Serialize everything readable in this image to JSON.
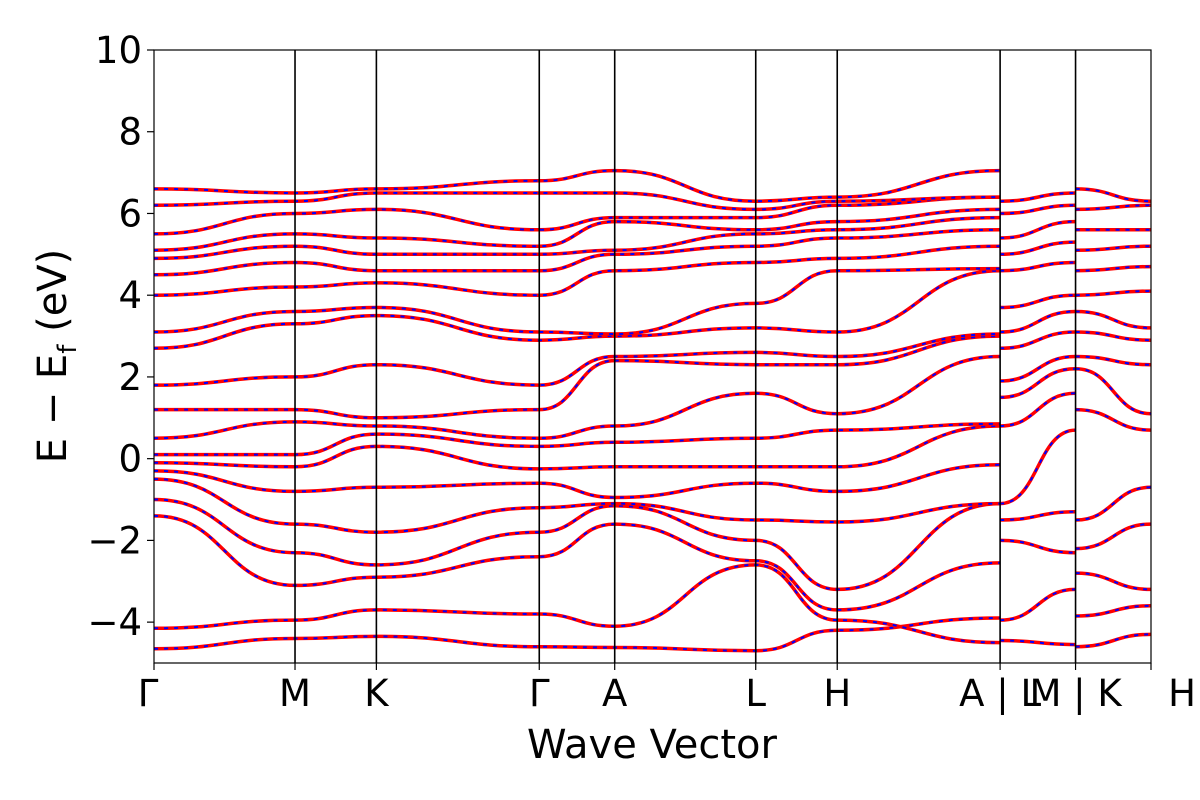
{
  "chart_data": {
    "type": "line",
    "title": "",
    "xlabel": "Wave Vector",
    "ylabel": {
      "main": "E − E",
      "sub": "f",
      "unit": " (eV)"
    },
    "ylim": [
      -5,
      10
    ],
    "yticks": [
      -4,
      -2,
      0,
      2,
      4,
      6,
      8,
      10
    ],
    "ytick_labels": [
      "−4",
      "−2",
      "0",
      "2",
      "4",
      "6",
      "8",
      "10"
    ],
    "grid": false,
    "legend": "none",
    "colors": {
      "solid": "#ff0000",
      "dashed": "#0000ff",
      "frame": "#000000"
    },
    "segments": [
      {
        "labels": [
          "Γ",
          "M",
          "K",
          "Γ",
          "A",
          "L",
          "H",
          "A"
        ],
        "x": [
          0,
          1.0,
          1.577,
          2.732,
          3.267,
          4.267,
          4.845,
          6.0
        ]
      },
      {
        "labels": [
          "L",
          "M"
        ],
        "x": [
          6.0,
          6.535
        ]
      },
      {
        "labels": [
          "K",
          "H"
        ],
        "x": [
          6.535,
          7.07
        ]
      }
    ],
    "xtick_labels": [
      "Γ",
      "M",
      "K",
      "Γ",
      "A",
      "L",
      "H",
      "A | L",
      "M | K",
      "H"
    ],
    "xtick_positions": [
      0,
      1.0,
      1.577,
      2.732,
      3.267,
      4.267,
      4.845,
      6.0,
      6.535,
      7.07
    ],
    "bands": [
      {
        "path": "seg1",
        "energies": [
          -4.65,
          -4.4,
          -4.35,
          -4.6,
          -4.62,
          -4.7,
          -4.2,
          -3.9
        ]
      },
      {
        "path": "seg1",
        "energies": [
          -4.15,
          -3.95,
          -3.7,
          -3.8,
          -4.1,
          -2.6,
          -3.95,
          -4.5
        ]
      },
      {
        "path": "seg1",
        "energies": [
          -1.4,
          -3.1,
          -2.9,
          -2.4,
          -1.6,
          -2.5,
          -3.7,
          -2.55
        ]
      },
      {
        "path": "seg1",
        "energies": [
          -1.0,
          -2.3,
          -2.6,
          -1.8,
          -1.15,
          -2.0,
          -3.2,
          -1.1
        ]
      },
      {
        "path": "seg1",
        "energies": [
          -0.5,
          -1.6,
          -1.8,
          -1.2,
          -1.1,
          -1.5,
          -1.55,
          -1.1
        ]
      },
      {
        "path": "seg1",
        "energies": [
          -0.3,
          -0.8,
          -0.7,
          -0.6,
          -0.95,
          -0.6,
          -0.8,
          -0.15
        ]
      },
      {
        "path": "seg1",
        "energies": [
          -0.1,
          -0.2,
          0.3,
          -0.25,
          -0.2,
          -0.2,
          -0.2,
          0.8
        ]
      },
      {
        "path": "seg1",
        "energies": [
          0.1,
          0.1,
          0.6,
          0.3,
          0.4,
          0.5,
          0.7,
          0.85
        ]
      },
      {
        "path": "seg1",
        "energies": [
          0.5,
          0.9,
          0.8,
          0.5,
          0.8,
          1.6,
          1.1,
          2.5
        ]
      },
      {
        "path": "seg1",
        "energies": [
          1.2,
          1.2,
          1.0,
          1.2,
          2.4,
          2.3,
          2.3,
          3.0
        ]
      },
      {
        "path": "seg1",
        "energies": [
          1.8,
          2.0,
          2.3,
          1.8,
          2.5,
          2.6,
          2.5,
          3.05
        ]
      },
      {
        "path": "seg1",
        "energies": [
          2.7,
          3.3,
          3.5,
          2.9,
          3.0,
          3.2,
          3.1,
          4.6
        ]
      },
      {
        "path": "seg1",
        "energies": [
          3.1,
          3.6,
          3.7,
          3.1,
          3.05,
          3.8,
          4.6,
          4.65
        ]
      },
      {
        "path": "seg1",
        "energies": [
          4.0,
          4.2,
          4.3,
          4.0,
          4.6,
          4.8,
          4.9,
          5.2
        ]
      },
      {
        "path": "seg1",
        "energies": [
          4.5,
          4.8,
          4.6,
          4.6,
          5.0,
          5.2,
          5.4,
          5.6
        ]
      },
      {
        "path": "seg1",
        "energies": [
          4.9,
          5.2,
          5.0,
          5.0,
          5.1,
          5.5,
          5.6,
          5.9
        ]
      },
      {
        "path": "seg1",
        "energies": [
          5.1,
          5.5,
          5.4,
          5.2,
          5.8,
          5.6,
          5.8,
          6.1
        ]
      },
      {
        "path": "seg1",
        "energies": [
          5.5,
          6.0,
          6.1,
          5.6,
          5.9,
          5.9,
          6.2,
          6.4
        ]
      },
      {
        "path": "seg1",
        "energies": [
          6.2,
          6.3,
          6.5,
          6.5,
          6.5,
          6.1,
          6.3,
          6.4
        ]
      },
      {
        "path": "seg1",
        "energies": [
          6.6,
          6.5,
          6.6,
          6.8,
          7.05,
          6.3,
          6.4,
          7.05
        ]
      },
      {
        "path": "seg2",
        "energies": [
          -4.45,
          -4.55
        ]
      },
      {
        "path": "seg2",
        "energies": [
          -3.95,
          -3.2
        ]
      },
      {
        "path": "seg2",
        "energies": [
          -2.0,
          -2.3
        ]
      },
      {
        "path": "seg2",
        "energies": [
          -1.5,
          -1.3
        ]
      },
      {
        "path": "seg2",
        "energies": [
          -1.1,
          0.7
        ]
      },
      {
        "path": "seg2",
        "energies": [
          0.8,
          1.6
        ]
      },
      {
        "path": "seg2",
        "energies": [
          1.5,
          2.2
        ]
      },
      {
        "path": "seg2",
        "energies": [
          1.9,
          2.5
        ]
      },
      {
        "path": "seg2",
        "energies": [
          2.7,
          3.1
        ]
      },
      {
        "path": "seg2",
        "energies": [
          3.1,
          3.6
        ]
      },
      {
        "path": "seg2",
        "energies": [
          3.7,
          4.0
        ]
      },
      {
        "path": "seg2",
        "energies": [
          4.6,
          4.8
        ]
      },
      {
        "path": "seg2",
        "energies": [
          5.0,
          5.3
        ]
      },
      {
        "path": "seg2",
        "energies": [
          5.4,
          5.8
        ]
      },
      {
        "path": "seg2",
        "energies": [
          6.0,
          6.2
        ]
      },
      {
        "path": "seg2",
        "energies": [
          6.3,
          6.5
        ]
      },
      {
        "path": "seg3",
        "energies": [
          -4.6,
          -4.3
        ]
      },
      {
        "path": "seg3",
        "energies": [
          -3.85,
          -3.6
        ]
      },
      {
        "path": "seg3",
        "energies": [
          -2.8,
          -3.2
        ]
      },
      {
        "path": "seg3",
        "energies": [
          -2.2,
          -1.6
        ]
      },
      {
        "path": "seg3",
        "energies": [
          -1.5,
          -0.7
        ]
      },
      {
        "path": "seg3",
        "energies": [
          1.2,
          0.7
        ]
      },
      {
        "path": "seg3",
        "energies": [
          2.2,
          1.1
        ]
      },
      {
        "path": "seg3",
        "energies": [
          2.5,
          2.3
        ]
      },
      {
        "path": "seg3",
        "energies": [
          3.1,
          2.9
        ]
      },
      {
        "path": "seg3",
        "energies": [
          3.6,
          3.2
        ]
      },
      {
        "path": "seg3",
        "energies": [
          4.0,
          4.1
        ]
      },
      {
        "path": "seg3",
        "energies": [
          4.6,
          4.7
        ]
      },
      {
        "path": "seg3",
        "energies": [
          5.1,
          5.2
        ]
      },
      {
        "path": "seg3",
        "energies": [
          5.6,
          5.6
        ]
      },
      {
        "path": "seg3",
        "energies": [
          6.1,
          6.2
        ]
      },
      {
        "path": "seg3",
        "energies": [
          6.6,
          6.3
        ]
      }
    ]
  }
}
